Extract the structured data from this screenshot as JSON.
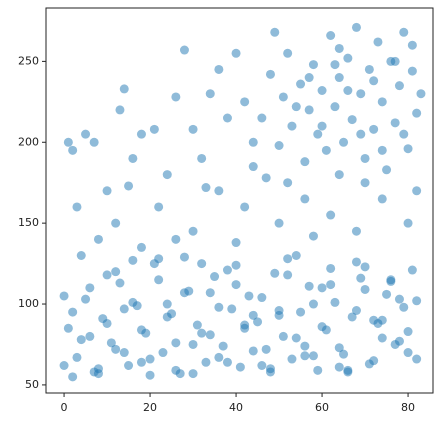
{
  "chart_data": {
    "type": "scatter",
    "color": "#1f77b4",
    "opacity": 0.5,
    "xlim": [
      -4.2,
      85.8
    ],
    "ylim": [
      45,
      283
    ],
    "xticks": [
      0,
      20,
      40,
      60,
      80
    ],
    "yticks": [
      50,
      100,
      150,
      200,
      250
    ],
    "x": [
      0,
      2,
      4,
      6,
      8,
      10,
      12,
      14,
      16,
      18,
      20,
      22,
      24,
      26,
      28,
      30,
      32,
      34,
      36,
      38,
      40,
      42,
      44,
      46,
      48,
      50,
      52,
      54,
      56,
      58,
      60,
      62,
      64,
      66,
      68,
      70,
      72,
      74,
      76,
      78,
      80,
      82,
      1,
      3,
      5,
      7,
      9,
      11,
      13,
      15,
      17,
      19,
      21,
      23,
      25,
      27,
      29,
      31,
      33,
      35,
      37,
      39,
      41,
      43,
      45,
      47,
      49,
      51,
      53,
      55,
      57,
      59,
      61,
      63,
      65,
      67,
      69,
      71,
      73,
      75,
      77,
      79,
      81,
      0,
      4,
      8,
      12,
      16,
      20,
      24,
      28,
      32,
      36,
      40,
      44,
      48,
      52,
      56,
      60,
      64,
      68,
      72,
      76,
      80,
      2,
      6,
      10,
      14,
      18,
      22,
      26,
      30,
      34,
      38,
      42,
      46,
      50,
      54,
      58,
      62,
      66,
      70,
      74,
      78,
      82,
      46,
      48,
      50,
      51,
      52,
      53,
      55,
      56,
      57,
      58,
      59,
      60,
      61,
      62,
      63,
      64,
      65,
      66,
      67,
      68,
      69,
      70,
      71,
      72,
      73,
      74,
      75,
      76,
      77,
      78,
      79,
      80,
      81,
      82,
      81,
      83,
      79,
      77,
      74,
      72,
      69,
      66,
      63,
      60,
      57,
      54,
      49,
      64,
      1,
      2,
      5,
      7,
      10,
      13,
      14,
      16,
      18,
      21,
      24,
      26,
      28,
      30,
      32,
      34,
      36,
      38,
      40,
      42,
      44,
      47,
      12,
      22,
      30,
      36,
      42,
      50,
      56,
      62,
      68,
      74,
      80,
      8,
      18,
      26,
      40,
      58,
      70,
      82,
      3,
      15,
      33,
      44,
      52,
      64
    ],
    "values": [
      62,
      95,
      78,
      110,
      57,
      88,
      120,
      70,
      101,
      84,
      66,
      115,
      92,
      59,
      107,
      75,
      125,
      81,
      98,
      64,
      112,
      87,
      71,
      104,
      60,
      93,
      118,
      79,
      68,
      100,
      86,
      122,
      73,
      58,
      96,
      109,
      65,
      90,
      114,
      77,
      83,
      102,
      85,
      67,
      103,
      58,
      91,
      76,
      113,
      62,
      99,
      82,
      125,
      70,
      94,
      57,
      108,
      87,
      64,
      117,
      74,
      97,
      61,
      105,
      89,
      72,
      119,
      80,
      66,
      95,
      111,
      59,
      84,
      101,
      69,
      92,
      116,
      63,
      88,
      106,
      75,
      98,
      121,
      105,
      130,
      60,
      72,
      127,
      56,
      100,
      129,
      82,
      67,
      124,
      93,
      58,
      128,
      74,
      110,
      61,
      126,
      90,
      115,
      70,
      55,
      80,
      118,
      97,
      64,
      128,
      76,
      57,
      107,
      121,
      85,
      62,
      96,
      130,
      68,
      112,
      59,
      123,
      79,
      103,
      66,
      215,
      242,
      198,
      228,
      255,
      210,
      236,
      188,
      220,
      248,
      205,
      232,
      195,
      266,
      222,
      240,
      200,
      252,
      214,
      271,
      230,
      190,
      245,
      208,
      262,
      225,
      183,
      250,
      212,
      235,
      268,
      196,
      244,
      218,
      260,
      230,
      205,
      250,
      195,
      238,
      205,
      232,
      248,
      210,
      240,
      222,
      268,
      258,
      200,
      195,
      205,
      200,
      170,
      220,
      233,
      190,
      205,
      208,
      180,
      228,
      257,
      208,
      190,
      230,
      245,
      215,
      255,
      225,
      200,
      178,
      150,
      160,
      145,
      170,
      160,
      150,
      165,
      155,
      145,
      165,
      150,
      140,
      135,
      140,
      138,
      142,
      175,
      170,
      160,
      173,
      172,
      185,
      175,
      180
    ]
  }
}
